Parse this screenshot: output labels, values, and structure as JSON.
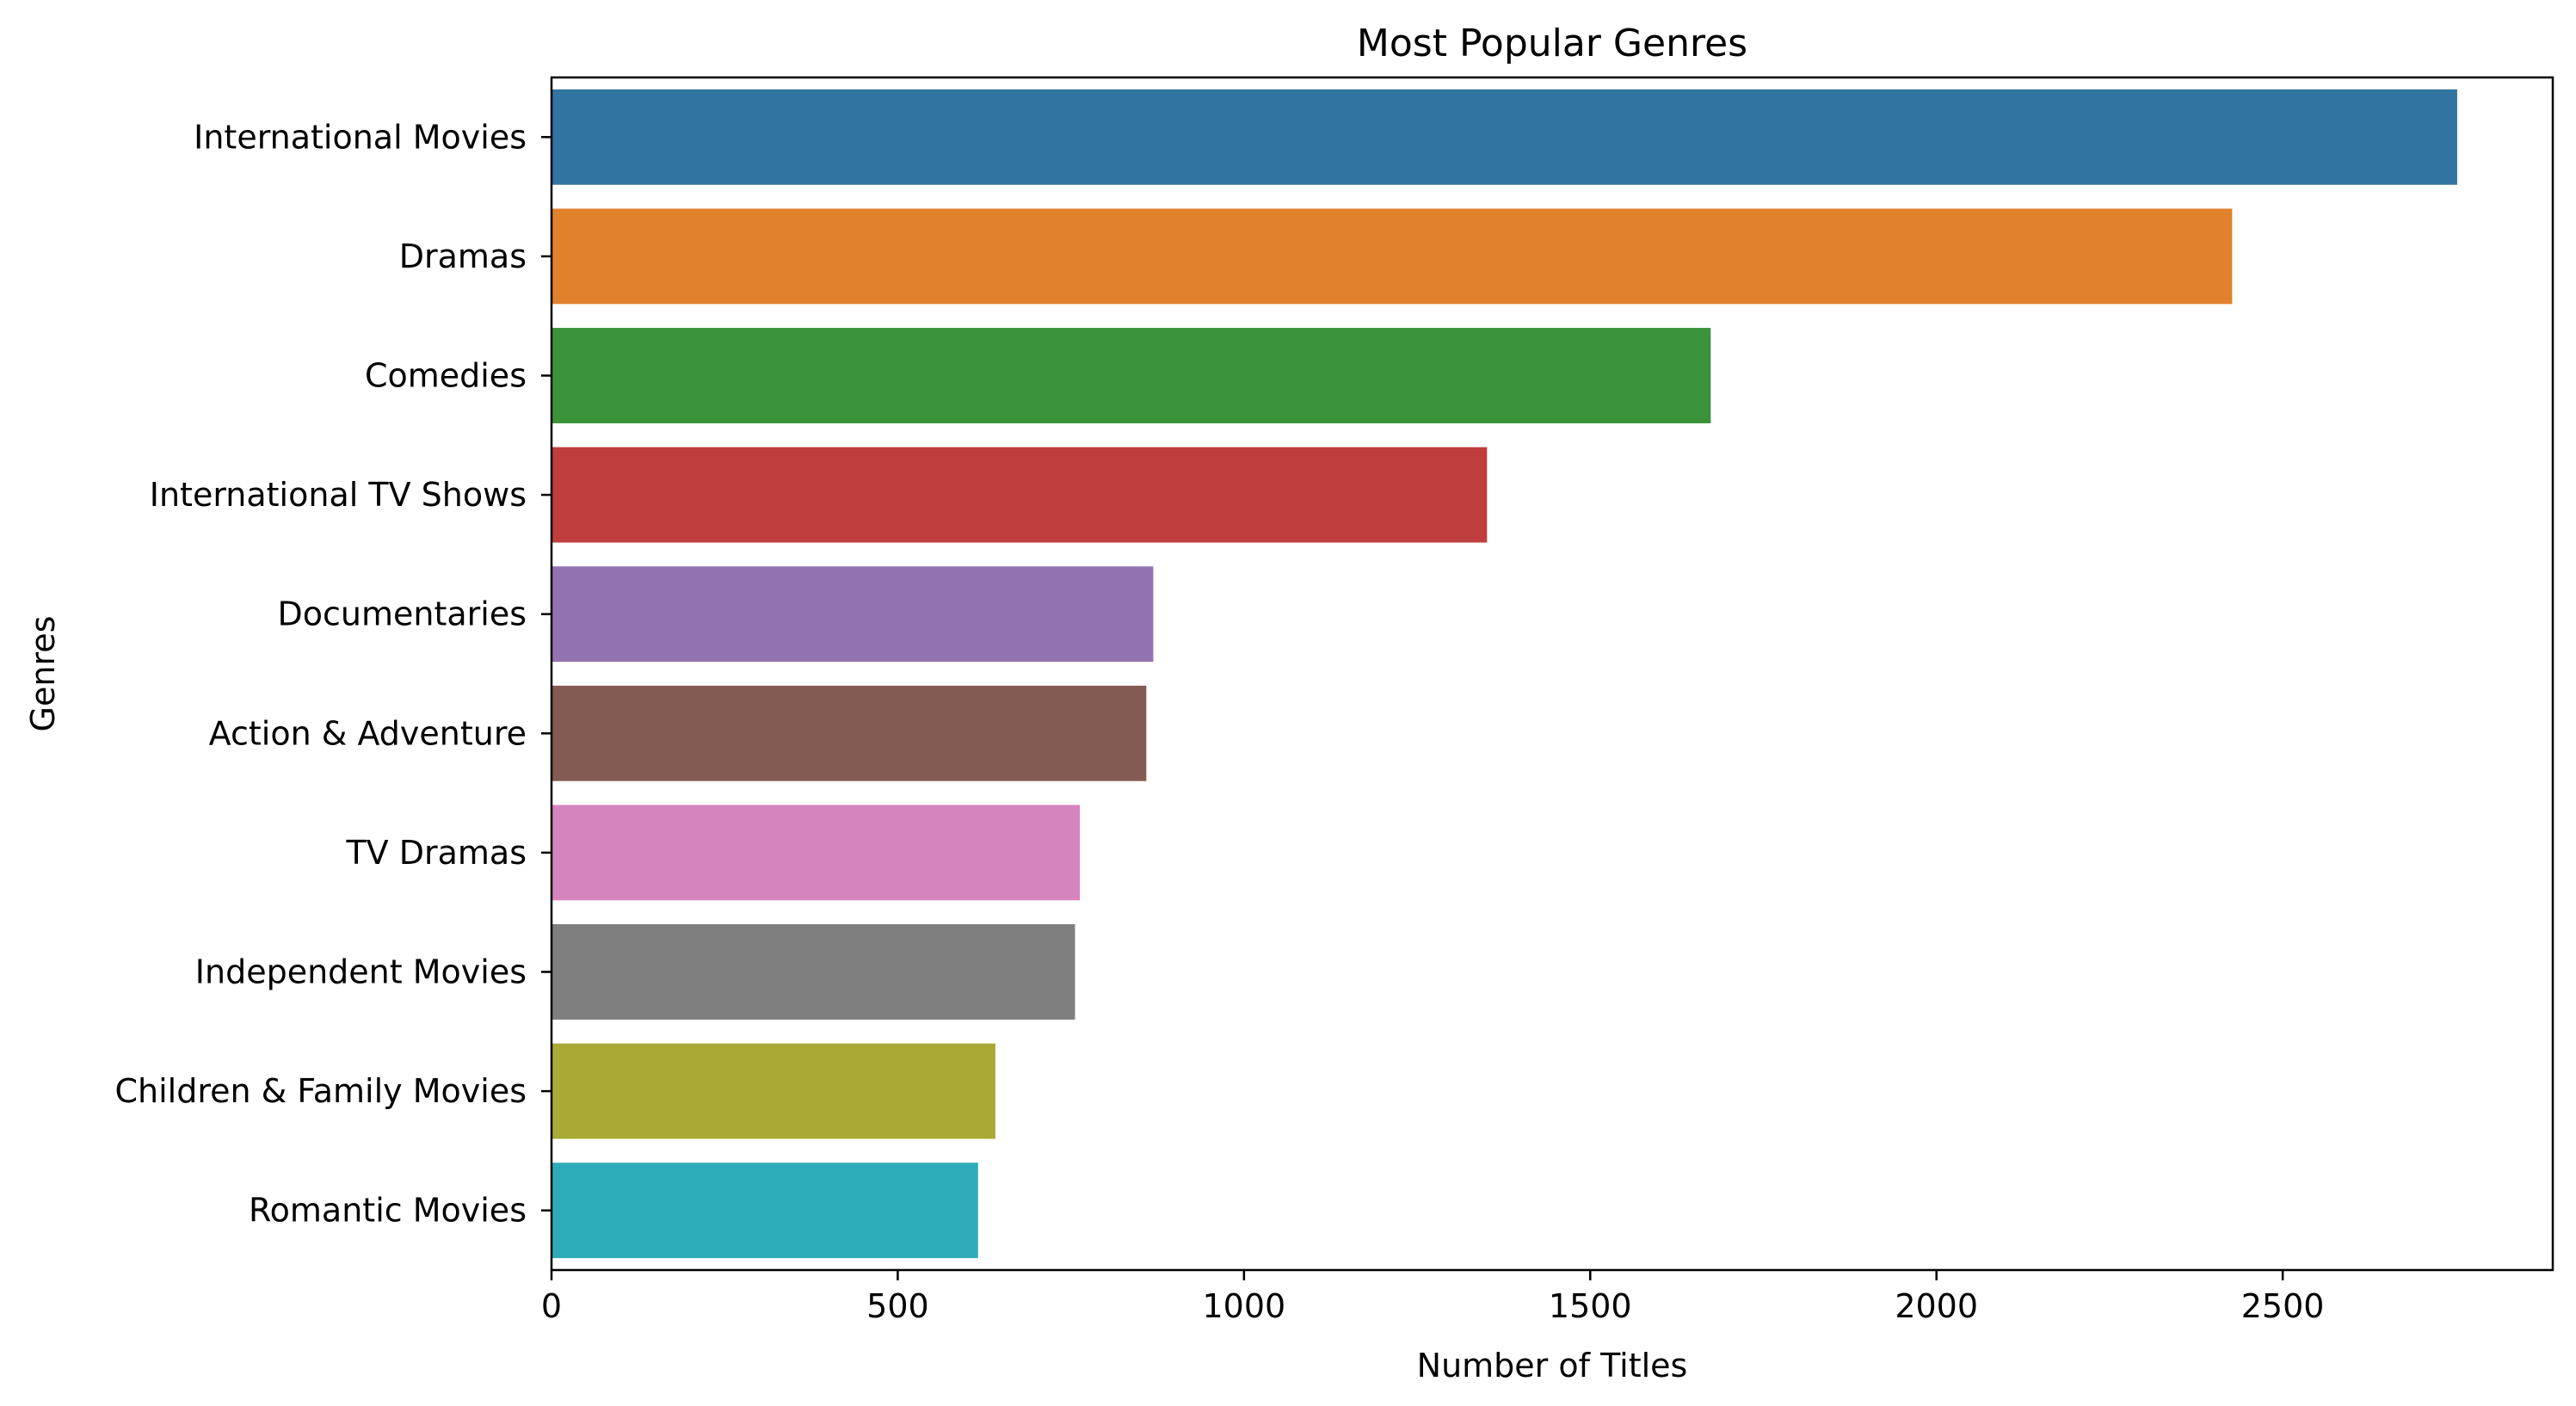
{
  "chart_data": {
    "type": "bar",
    "orientation": "horizontal",
    "title": "Most Popular Genres",
    "xlabel": "Number of Titles",
    "ylabel": "Genres",
    "xlim": [
      0,
      2890
    ],
    "xticks": [
      0,
      500,
      1000,
      1500,
      2000,
      2500
    ],
    "xtick_labels": [
      "0",
      "500",
      "1000",
      "1500",
      "2000",
      "2500"
    ],
    "grid": false,
    "categories": [
      "International Movies",
      "Dramas",
      "Comedies",
      "International TV Shows",
      "Documentaries",
      "Action & Adventure",
      "TV Dramas",
      "Independent Movies",
      "Children & Family Movies",
      "Romantic Movies"
    ],
    "values": [
      2752,
      2427,
      1674,
      1351,
      869,
      859,
      763,
      756,
      641,
      616
    ],
    "colors": [
      "#3274a1",
      "#e1812c",
      "#3a923a",
      "#c03d3e",
      "#9372b2",
      "#845b53",
      "#d684bd",
      "#7f7f7f",
      "#a9aa35",
      "#2eabb8"
    ]
  }
}
